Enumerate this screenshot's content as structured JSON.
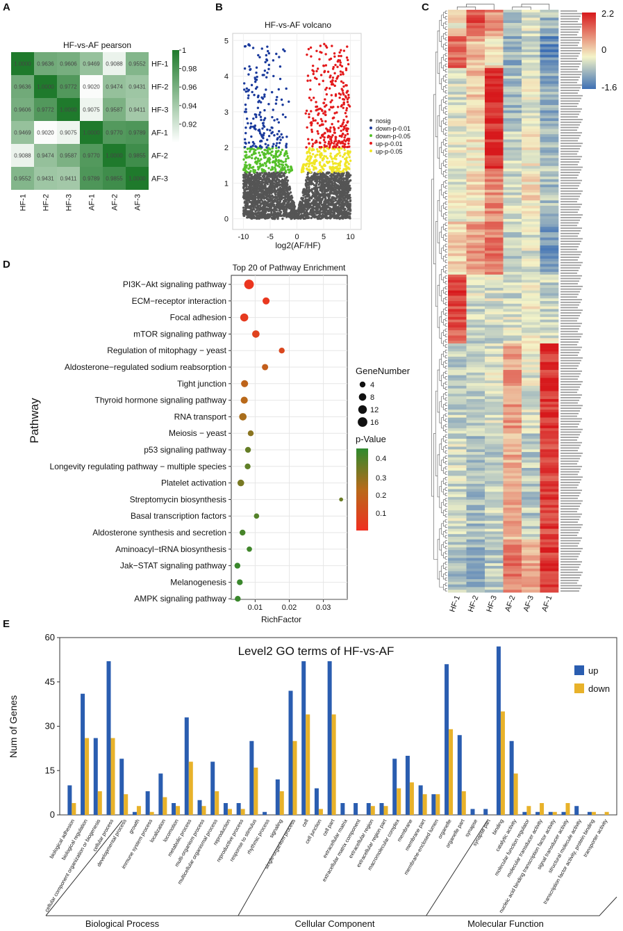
{
  "panels": {
    "A": "A",
    "B": "B",
    "C": "C",
    "D": "D",
    "E": "E"
  },
  "colors": {
    "heat_low": "#ffffff",
    "heat_high": "#1f7a2c",
    "hm_low": "#3d6fb4",
    "hm_mid": "#f4f4c8",
    "hm_high": "#d7191c",
    "volcano": {
      "nosig": "#555555",
      "down1": "#1a3a9c",
      "down5": "#55c02a",
      "up1": "#e31a1c",
      "up5": "#f0e626"
    },
    "up": "#2a5db0",
    "down": "#e8b22a"
  },
  "chart_data": [
    {
      "type": "heatmap",
      "title": "HF-vs-AF pearson",
      "rows": [
        "HF-1",
        "HF-2",
        "HF-3",
        "AF-1",
        "AF-2",
        "AF-3"
      ],
      "cols": [
        "HF-1",
        "HF-2",
        "HF-3",
        "AF-1",
        "AF-2",
        "AF-3"
      ],
      "cells": [
        [
          "1.0000",
          "0.9636",
          "0.9606",
          "0.9469",
          "0.9088",
          "0.9552"
        ],
        [
          "0.9636",
          "1.0000",
          "0.9772",
          "0.9020",
          "0.9474",
          "0.9431"
        ],
        [
          "0.9606",
          "0.9772",
          "1.0000",
          "0.9075",
          "0.9587",
          "0.9411"
        ],
        [
          "0.9469",
          "0.9020",
          "0.9075",
          "1.0000",
          "0.9770",
          "0.9789"
        ],
        [
          "0.9088",
          "0.9474",
          "0.9587",
          "0.9770",
          "1.0000",
          "0.9855"
        ],
        [
          "0.9552",
          "0.9431",
          "0.9411",
          "0.9789",
          "0.9855",
          "1.0000"
        ]
      ],
      "scale_range": [
        0.9,
        1.0
      ],
      "scale_ticks": [
        "1",
        "0.98",
        "0.96",
        "0.94",
        "0.92"
      ]
    },
    {
      "type": "scatter",
      "title": "HF-vs-AF volcano",
      "xlabel": "log2(AF/HF)",
      "xlim": [
        -12,
        12
      ],
      "ylim": [
        -0.3,
        5.2
      ],
      "xticks": [
        "-10",
        "-5",
        "0",
        "5",
        "10"
      ],
      "yticks": [
        "0",
        "1",
        "2",
        "3",
        "4",
        "5"
      ],
      "legend": [
        "nosig",
        "down-p-0.01",
        "down-p-0.05",
        "up-p-0.01",
        "up-p-0.05"
      ]
    },
    {
      "type": "heatmap",
      "title": "",
      "cols": [
        "HF-1",
        "HF-2",
        "HF-3",
        "AF-2",
        "AF-3",
        "AF-1"
      ],
      "scale_labels": [
        "2.2",
        "0",
        "-1.6"
      ],
      "scale_range": [
        -1.6,
        2.2
      ]
    },
    {
      "type": "scatter",
      "title": "Top 20 of Pathway Enrichment",
      "ylabel": "Pathway",
      "xlabel": "RichFactor",
      "xlim": [
        0.003,
        0.037
      ],
      "xticks": [
        "0.01",
        "0.02",
        "0.03"
      ],
      "size_legend_title": "GeneNumber",
      "size_legend": [
        "4",
        "8",
        "12",
        "16"
      ],
      "color_legend_title": "p-Value",
      "color_legend": [
        "0.4",
        "0.3",
        "0.2",
        "0.1"
      ],
      "pathways": [
        "PI3K−Akt signaling pathway",
        "ECM−receptor interaction",
        "Focal adhesion",
        "mTOR signaling pathway",
        "Regulation of mitophagy − yeast",
        "Aldosterone−regulated sodium reabsorption",
        "Tight junction",
        "Thyroid hormone signaling pathway",
        "RNA transport",
        "Meiosis − yeast",
        "p53 signaling pathway",
        "Longevity regulating pathway − multiple species",
        "Platelet activation",
        "Streptomycin biosynthesis",
        "Basal transcription factors",
        "Aldosterone synthesis and secretion",
        "Aminoacyl−tRNA biosynthesis",
        "Jak−STAT signaling pathway",
        "Melanogenesis",
        "AMPK signaling pathway"
      ],
      "rich_factor": [
        0.0082,
        0.0132,
        0.0068,
        0.0102,
        0.0178,
        0.0129,
        0.0069,
        0.0068,
        0.0064,
        0.0087,
        0.0079,
        0.0078,
        0.0058,
        0.0352,
        0.0104,
        0.0063,
        0.0083,
        0.0048,
        0.0055,
        0.0049
      ],
      "gene_number": [
        16,
        7,
        10,
        8,
        4,
        5,
        7,
        7,
        8,
        4,
        4,
        4,
        6,
        1,
        3,
        4,
        3,
        4,
        4,
        4
      ],
      "p_value": [
        0.02,
        0.03,
        0.04,
        0.07,
        0.09,
        0.18,
        0.2,
        0.22,
        0.25,
        0.3,
        0.36,
        0.37,
        0.33,
        0.35,
        0.39,
        0.41,
        0.42,
        0.43,
        0.43,
        0.43
      ]
    },
    {
      "type": "bar",
      "title": "Level2 GO terms of HF-vs-AF",
      "ylabel": "Num of Genes",
      "ylim": [
        0,
        60
      ],
      "yticks": [
        "0",
        "15",
        "30",
        "45",
        "60"
      ],
      "categories": [
        "biological adhesion",
        "biological regulation",
        "cellular component organization or biogenesis",
        "cellular process",
        "developmental process",
        "growth",
        "immune system process",
        "localization",
        "locomotion",
        "metabolic process",
        "multi-organism process",
        "multicellular organismal process",
        "reproduction",
        "reproductive process",
        "response to stimulus",
        "rhythmic process",
        "signaling",
        "single-organism process",
        "cell",
        "cell junction",
        "cell part",
        "extracellular matrix",
        "extracellular matrix component",
        "extracellular region",
        "extracellular region part",
        "macromolecular complex",
        "membrane",
        "membrane part",
        "membrane-enclosed lumen",
        "organelle",
        "organelle part",
        "synapse",
        "synapse part",
        "binding",
        "catalytic activity",
        "molecular function regulator",
        "molecular transducer activity",
        "nucleic acid binding transcription factor activity",
        "signal transducer activity",
        "structural molecule activity",
        "transcription factor activity, protein binding",
        "transporter activity"
      ],
      "series": [
        {
          "name": "up",
          "values": [
            10,
            41,
            26,
            52,
            19,
            1,
            8,
            14,
            4,
            33,
            5,
            18,
            4,
            4,
            25,
            1,
            12,
            42,
            52,
            9,
            52,
            4,
            4,
            4,
            4,
            19,
            20,
            10,
            7,
            51,
            27,
            2,
            2,
            57,
            25,
            1,
            1,
            1,
            1,
            3,
            1,
            0
          ]
        },
        {
          "name": "down",
          "values": [
            4,
            26,
            8,
            26,
            7,
            3,
            1,
            6,
            3,
            18,
            3,
            8,
            2,
            2,
            16,
            0,
            8,
            25,
            34,
            2,
            34,
            0,
            0,
            3,
            3,
            9,
            11,
            7,
            7,
            29,
            8,
            0,
            0,
            35,
            14,
            3,
            4,
            1,
            4,
            0,
            1,
            1
          ]
        }
      ],
      "groups": [
        "Biological Process",
        "Cellular Component",
        "Molecular Function"
      ]
    }
  ]
}
